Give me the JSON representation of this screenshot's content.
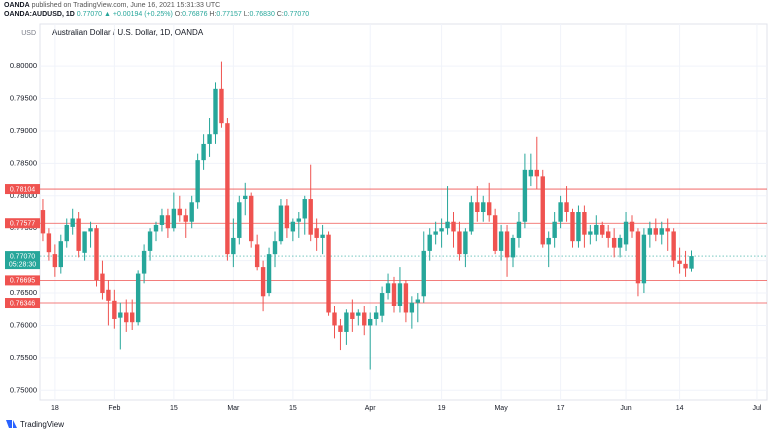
{
  "header": {
    "publisher": "OANDA",
    "published": "published on TradingView.com, June 16, 2021 15:31:33 UTC",
    "symbol": "OANDA:AUDUSD, 1D",
    "last": "0.77070",
    "change": "▲ +0.00194 (+0.25%)",
    "fields": [
      {
        "label": "O:",
        "value": "0.76876"
      },
      {
        "label": "H:",
        "value": "0.77157"
      },
      {
        "label": "L:",
        "value": "0.76830"
      },
      {
        "label": "C:",
        "value": "0.77070"
      }
    ]
  },
  "footer": {
    "brand": "TradingView"
  },
  "chart_data": {
    "type": "candlestick",
    "title": "Australian Dollar / U.S. Dollar, 1D, OANDA",
    "unit": "USD",
    "up_color": "#26a69a",
    "down_color": "#ef5350",
    "level_color": "#ef5350",
    "grid": true,
    "ylim": [
      0.7485,
      0.8065
    ],
    "yticks": [
      {
        "value": 0.75,
        "label": "0.75000"
      },
      {
        "value": 0.755,
        "label": "0.75500"
      },
      {
        "value": 0.76,
        "label": "0.76000"
      },
      {
        "value": 0.765,
        "label": "0.76500"
      },
      {
        "value": 0.77,
        "label": "0.77000"
      },
      {
        "value": 0.775,
        "label": "0.77500"
      },
      {
        "value": 0.78,
        "label": "0.78000"
      },
      {
        "value": 0.785,
        "label": "0.78500"
      },
      {
        "value": 0.79,
        "label": "0.79000"
      },
      {
        "value": 0.795,
        "label": "0.79500"
      },
      {
        "value": 0.8,
        "label": "0.80000"
      }
    ],
    "levels": [
      0.78104,
      0.77577,
      0.76695,
      0.76346
    ],
    "current": {
      "value": 0.7707,
      "label": "0.77070",
      "countdown": "05:28:30"
    },
    "categories": [
      null,
      null,
      null,
      "18",
      null,
      null,
      null,
      null,
      null,
      null,
      null,
      null,
      null,
      "Feb",
      null,
      null,
      null,
      null,
      null,
      null,
      null,
      null,
      null,
      "15",
      null,
      null,
      null,
      null,
      null,
      null,
      null,
      null,
      null,
      "Mar",
      null,
      null,
      null,
      null,
      null,
      null,
      null,
      null,
      null,
      "15",
      null,
      null,
      null,
      null,
      null,
      null,
      null,
      null,
      null,
      null,
      null,
      null,
      "Apr",
      null,
      null,
      null,
      null,
      null,
      null,
      null,
      null,
      null,
      null,
      null,
      "19",
      null,
      null,
      null,
      null,
      null,
      null,
      null,
      null,
      null,
      "May",
      null,
      null,
      null,
      null,
      null,
      null,
      null,
      null,
      null,
      "17",
      null,
      null,
      null,
      null,
      null,
      null,
      null,
      null,
      null,
      null,
      "Jun",
      null,
      null,
      null,
      null,
      null,
      null,
      null,
      null,
      "14",
      null,
      null,
      null,
      null,
      null,
      null,
      null,
      null,
      null,
      null,
      null,
      null,
      "Jul"
    ],
    "open": [
      0.778,
      0.7778,
      0.7742,
      0.771,
      0.769,
      0.773,
      0.7752,
      0.7765,
      0.7712,
      0.7745,
      0.775,
      0.768,
      0.7655,
      0.7638,
      0.7612,
      0.762,
      0.762,
      0.7605,
      0.768,
      0.7715,
      0.7745,
      0.7755,
      0.777,
      0.775,
      0.778,
      0.777,
      0.776,
      0.779,
      0.7855,
      0.788,
      0.7895,
      0.7965,
      0.7912,
      0.771,
      0.7735,
      0.7795,
      0.78,
      0.7725,
      0.769,
      0.765,
      0.771,
      0.773,
      0.7785,
      0.7745,
      0.776,
      0.7765,
      0.7795,
      0.775,
      0.7735,
      0.774,
      0.762,
      0.76,
      0.759,
      0.762,
      0.7615,
      0.762,
      0.76,
      0.761,
      0.7615,
      0.765,
      0.7665,
      0.763,
      0.7665,
      0.762,
      0.7635,
      0.7645,
      0.7715,
      0.774,
      0.7745,
      0.775,
      0.776,
      0.7745,
      0.771,
      0.7745,
      0.779,
      0.7775,
      0.779,
      0.777,
      0.7715,
      0.7745,
      0.7705,
      0.7735,
      0.776,
      0.783,
      0.784,
      0.783,
      0.7725,
      0.7735,
      0.776,
      0.779,
      0.7775,
      0.773,
      0.7775,
      0.774,
      0.774,
      0.7755,
      0.7745,
      0.7735,
      0.772,
      0.7725,
      0.776,
      0.7745,
      0.7665,
      0.774,
      0.775,
      0.774,
      0.775,
      0.7745,
      0.77,
      0.7695,
      0.76876,
      null,
      null,
      null,
      null,
      null,
      null,
      null,
      null,
      null,
      null,
      null
    ],
    "high": [
      0.78,
      0.7795,
      0.775,
      0.7725,
      0.774,
      0.7765,
      0.778,
      0.7775,
      0.7745,
      0.776,
      0.7755,
      0.77,
      0.767,
      0.7655,
      0.7635,
      0.764,
      0.764,
      0.7685,
      0.7725,
      0.775,
      0.776,
      0.778,
      0.778,
      0.7805,
      0.78,
      0.778,
      0.78,
      0.7865,
      0.7895,
      0.792,
      0.7975,
      0.8007,
      0.792,
      0.7765,
      0.78,
      0.782,
      0.7805,
      0.774,
      0.77,
      0.772,
      0.7745,
      0.7795,
      0.7795,
      0.7765,
      0.7775,
      0.78,
      0.7848,
      0.7765,
      0.7755,
      0.7745,
      0.763,
      0.761,
      0.7625,
      0.764,
      0.7625,
      0.763,
      0.762,
      0.763,
      0.766,
      0.768,
      0.7675,
      0.769,
      0.767,
      0.7645,
      0.765,
      0.7745,
      0.775,
      0.776,
      0.7765,
      0.7815,
      0.7775,
      0.776,
      0.775,
      0.78,
      0.7815,
      0.78,
      0.782,
      0.778,
      0.7755,
      0.7755,
      0.774,
      0.7775,
      0.7865,
      0.7865,
      0.7891,
      0.784,
      0.7745,
      0.7775,
      0.78,
      0.7815,
      0.778,
      0.7785,
      0.7785,
      0.7755,
      0.777,
      0.776,
      0.7755,
      0.775,
      0.774,
      0.7775,
      0.777,
      0.775,
      0.775,
      0.776,
      0.7765,
      0.776,
      0.7765,
      0.775,
      0.772,
      0.7715,
      0.77157,
      null,
      null,
      null,
      null,
      null,
      null,
      null,
      null,
      null,
      null,
      null
    ],
    "low": [
      0.774,
      0.773,
      0.77,
      0.7675,
      0.768,
      0.772,
      0.774,
      0.7705,
      0.77,
      0.772,
      0.766,
      0.764,
      0.76,
      0.7595,
      0.7563,
      0.759,
      0.7593,
      0.76,
      0.7665,
      0.77,
      0.773,
      0.7745,
      0.7735,
      0.7745,
      0.776,
      0.7735,
      0.775,
      0.778,
      0.784,
      0.786,
      0.788,
      0.7905,
      0.77,
      0.769,
      0.7725,
      0.777,
      0.772,
      0.7685,
      0.7622,
      0.7645,
      0.769,
      0.7725,
      0.7735,
      0.773,
      0.7735,
      0.774,
      0.773,
      0.7715,
      0.771,
      0.7615,
      0.758,
      0.7562,
      0.757,
      0.759,
      0.76,
      0.7585,
      0.7532,
      0.76,
      0.7605,
      0.764,
      0.762,
      0.762,
      0.7605,
      0.7595,
      0.7605,
      0.7635,
      0.77,
      0.7725,
      0.772,
      0.774,
      0.772,
      0.77,
      0.769,
      0.774,
      0.776,
      0.776,
      0.776,
      0.771,
      0.77,
      0.7675,
      0.769,
      0.772,
      0.775,
      0.7815,
      0.781,
      0.772,
      0.769,
      0.772,
      0.775,
      0.776,
      0.772,
      0.772,
      0.772,
      0.7725,
      0.773,
      0.7735,
      0.772,
      0.7705,
      0.7705,
      0.7715,
      0.7735,
      0.7645,
      0.765,
      0.772,
      0.773,
      0.7725,
      0.7715,
      0.769,
      0.768,
      0.7675,
      0.7683,
      null,
      null,
      null,
      null,
      null,
      null,
      null,
      null,
      null,
      null,
      null
    ],
    "close": [
      0.775,
      0.7742,
      0.7713,
      0.769,
      0.773,
      0.7755,
      0.7765,
      0.7715,
      0.7745,
      0.775,
      0.767,
      0.765,
      0.7638,
      0.761,
      0.762,
      0.7605,
      0.7605,
      0.768,
      0.7715,
      0.7745,
      0.7755,
      0.777,
      0.775,
      0.778,
      0.777,
      0.776,
      0.779,
      0.7855,
      0.788,
      0.7895,
      0.7965,
      0.7912,
      0.771,
      0.7735,
      0.779,
      0.78,
      0.773,
      0.769,
      0.7645,
      0.771,
      0.773,
      0.7785,
      0.775,
      0.776,
      0.7765,
      0.7795,
      0.774,
      0.7735,
      0.774,
      0.762,
      0.76,
      0.759,
      0.762,
      0.761,
      0.762,
      0.76,
      0.761,
      0.762,
      0.765,
      0.7665,
      0.763,
      0.7665,
      0.762,
      0.7635,
      0.764,
      0.7715,
      0.774,
      0.7745,
      0.775,
      0.776,
      0.7745,
      0.771,
      0.7745,
      0.779,
      0.7775,
      0.779,
      0.777,
      0.7715,
      0.7745,
      0.7705,
      0.7735,
      0.776,
      0.784,
      0.784,
      0.783,
      0.7725,
      0.7735,
      0.776,
      0.779,
      0.7775,
      0.773,
      0.7775,
      0.774,
      0.7745,
      0.7755,
      0.774,
      0.7735,
      0.772,
      0.7735,
      0.776,
      0.7745,
      0.7665,
      0.774,
      0.775,
      0.774,
      0.775,
      0.7745,
      0.77,
      0.7695,
      0.7688,
      0.7707,
      null,
      null,
      null,
      null,
      null,
      null,
      null,
      null,
      null,
      null,
      null
    ]
  }
}
